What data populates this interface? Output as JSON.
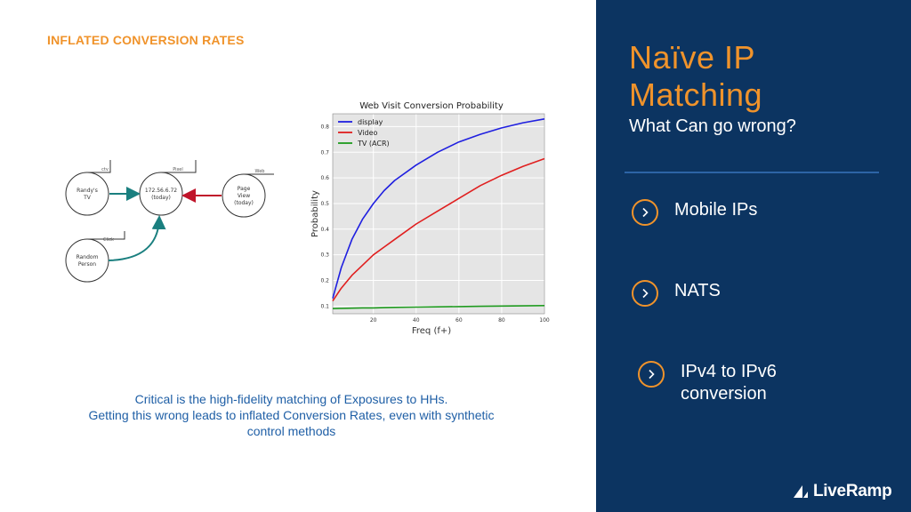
{
  "slide": {
    "heading": "INFLATED CONVERSION RATES",
    "caption": [
      "Critical is the high-fidelity matching of Exposures to HHs.",
      "Getting this wrong leads to inflated Conversion Rates, even with synthetic",
      "control methods"
    ]
  },
  "diagram": {
    "nodes": [
      {
        "tag": "ctv",
        "label": [
          "Randy's",
          "TV"
        ]
      },
      {
        "tag": "Pixel",
        "label": [
          "172.56.6.72",
          "(today)"
        ]
      },
      {
        "tag": "Web",
        "label": [
          "Page",
          "View",
          "(today)"
        ]
      },
      {
        "tag": "Click",
        "label": [
          "Random",
          "Person"
        ]
      }
    ]
  },
  "chart_data": {
    "type": "line",
    "title": "Web Visit Conversion Probability",
    "xlabel": "Freq (f+)",
    "ylabel": "Probability",
    "xlim": [
      1,
      100
    ],
    "ylim": [
      0.07,
      0.85
    ],
    "xticks": [
      20,
      40,
      60,
      80,
      100
    ],
    "yticks": [
      0.1,
      0.2,
      0.3,
      0.4,
      0.5,
      0.6,
      0.7,
      0.8
    ],
    "grid": true,
    "legend_position": "top-left",
    "x": [
      1,
      5,
      10,
      15,
      20,
      25,
      30,
      40,
      50,
      60,
      70,
      80,
      90,
      100
    ],
    "series": [
      {
        "name": "display",
        "color": "#1f1fe0",
        "values": [
          0.13,
          0.25,
          0.36,
          0.44,
          0.5,
          0.55,
          0.59,
          0.65,
          0.7,
          0.74,
          0.77,
          0.795,
          0.815,
          0.83
        ]
      },
      {
        "name": "Video",
        "color": "#e01f1f",
        "values": [
          0.12,
          0.17,
          0.22,
          0.26,
          0.3,
          0.33,
          0.36,
          0.42,
          0.47,
          0.52,
          0.57,
          0.61,
          0.645,
          0.675
        ]
      },
      {
        "name": "TV (ACR)",
        "color": "#1f9a1f",
        "values": [
          0.09,
          0.091,
          0.092,
          0.093,
          0.093,
          0.094,
          0.095,
          0.096,
          0.097,
          0.098,
          0.099,
          0.1,
          0.101,
          0.102
        ]
      }
    ]
  },
  "sidebar": {
    "title": [
      "Naïve IP",
      "Matching"
    ],
    "subtitle": "What Can go wrong?",
    "items": [
      {
        "label": [
          "Mobile IPs"
        ]
      },
      {
        "label": [
          "NATS"
        ]
      },
      {
        "label": [
          "IPv4 to IPv6",
          "conversion"
        ]
      }
    ],
    "logo": "LiveRamp"
  },
  "colors": {
    "accent": "#f0932b",
    "panel": "#0c3461",
    "caption": "#1f5fa6"
  }
}
